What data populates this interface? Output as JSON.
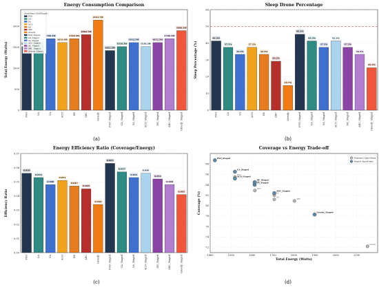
{
  "figure_labels": [
    "(a)",
    "(b)",
    "(c)",
    "(d)"
  ],
  "chart_data": [
    {
      "type": "bar",
      "title": "Energy Consumption Comparison",
      "xlabel": "",
      "ylabel": "Total Energy (Watts)",
      "ylim": [
        0,
        2400
      ],
      "yticks": [
        0,
        500,
        1000,
        1500,
        2000
      ],
      "grid": true,
      "legend": {
        "placement": "top-left",
        "title": "Algorithms (Std/Staged)",
        "entries": [
          "PSO",
          "GA",
          "SA",
          "ACO",
          "DE",
          "ABC",
          "Greedy",
          "PSO_Staged",
          "GA_Staged",
          "SA_Staged",
          "ACO_Staged",
          "DE_Staged",
          "ABC_Staged",
          "Greedy_Staged"
        ]
      },
      "categories": [
        "PSO",
        "GA",
        "SA",
        "ACO",
        "DE",
        "ABC",
        "Greedy",
        "PSO_Staged",
        "GA_Staged",
        "SA_Staged",
        "ACO_Staged",
        "DE_Staged",
        "ABC_Staged",
        "Greedy_Staged"
      ],
      "values": [
        1518.3,
        1612.5,
        1706.3,
        1613.6,
        1706.3,
        1802.7,
        2151.7,
        1422.5,
        1518.3,
        1612.5,
        1518.3,
        1612.5,
        1706.3,
        1898.9
      ],
      "data_labels": [
        "1518.3W",
        "1612.5W",
        "1706.3W",
        "1613.6W",
        "1706.3W",
        "1802.7W",
        "2151.7W",
        "1422.5W",
        "1518.3W",
        "1612.5W",
        "1518.3W",
        "1612.5W",
        "1706.3W",
        "1898.9W"
      ],
      "colors": [
        "#22364f",
        "#2e8a83",
        "#3f6fcf",
        "#f0a21c",
        "#e57c1f",
        "#b5302a",
        "#f07c13",
        "#22364f",
        "#2e8a83",
        "#3f6fcf",
        "#aad4ee",
        "#8b44a6",
        "#b27ccf",
        "#f0573a"
      ]
    },
    {
      "type": "bar",
      "title": "Sleep Drone Percentage",
      "xlabel": "",
      "ylabel": "Sleep Percentage (%)",
      "ylim": [
        0,
        60
      ],
      "yticks": [
        0,
        10,
        20,
        30,
        40,
        50,
        60
      ],
      "reference_line": 50,
      "grid": true,
      "categories": [
        "PSO",
        "GA",
        "SA",
        "ACO",
        "DE",
        "ABC",
        "Greedy",
        "PSO_Staged",
        "GA_Staged",
        "SA_Staged",
        "ACO_Staged",
        "DE_Staged",
        "ABC_Staged",
        "Greedy_Staged"
      ],
      "values": [
        41.3,
        37.5,
        33.3,
        37.5,
        33.3,
        29.2,
        14.7,
        45.3,
        41.3,
        37.5,
        41.3,
        37.5,
        33.3,
        25.3
      ],
      "data_labels": [
        "41.3%",
        "37.5%",
        "33.3%",
        "37.5%",
        "33.3%",
        "29.2%",
        "14.7%",
        "45.3%",
        "41.3%",
        "37.5%",
        "41.3%",
        "37.5%",
        "33.3%",
        "25.3%"
      ],
      "colors": [
        "#22364f",
        "#2e8a83",
        "#3f6fcf",
        "#f0a21c",
        "#e57c1f",
        "#b5302a",
        "#f07c13",
        "#22364f",
        "#2e8a83",
        "#3f6fcf",
        "#aad4ee",
        "#8b44a6",
        "#b27ccf",
        "#f0573a"
      ]
    },
    {
      "type": "bar",
      "title": "Energy Efficiency Ratio (Coverage/Energy)",
      "xlabel": "",
      "ylabel": "Efficiency Ratio",
      "ylim": [
        0,
        0.07
      ],
      "yticks": [
        0,
        0.01,
        0.02,
        0.03,
        0.04,
        0.05,
        0.06,
        0.07
      ],
      "ytick_labels": [
        "0.00",
        "0.01",
        "0.02",
        "0.03",
        "0.04",
        "0.05",
        "0.06",
        "0.07"
      ],
      "grid": true,
      "categories": [
        "PSO",
        "GA",
        "SA",
        "ACO",
        "DE",
        "ABC",
        "Greedy",
        "PSO_Staged",
        "GA_Staged",
        "SA_Staged",
        "ACO_Staged",
        "DE_Staged",
        "ABC_Staged",
        "Greedy_Staged"
      ],
      "values": [
        0.056,
        0.053,
        0.048,
        0.051,
        0.047,
        0.045,
        0.034,
        0.063,
        0.057,
        0.053,
        0.056,
        0.052,
        0.048,
        0.041
      ],
      "data_labels": [
        "0.056",
        "0.053",
        "0.048",
        "0.051",
        "0.047",
        "0.045",
        "0.034",
        "0.063",
        "0.057",
        "0.053",
        "0.056",
        "0.052",
        "0.048",
        "0.041"
      ],
      "colors": [
        "#22364f",
        "#2e8a83",
        "#3f6fcf",
        "#f0a21c",
        "#e57c1f",
        "#b5302a",
        "#f07c13",
        "#22364f",
        "#2e8a83",
        "#3f6fcf",
        "#aad4ee",
        "#8b44a6",
        "#b27ccf",
        "#f0573a"
      ]
    },
    {
      "type": "scatter",
      "title": "Coverage vs Energy Trade-off",
      "xlabel": "Total Energy (Watts)",
      "ylabel": "Coverage (%)",
      "xlim": [
        1400,
        2200
      ],
      "ylim": [
        71,
        90
      ],
      "xticks": [
        1400,
        1500,
        1600,
        1700,
        1800,
        1900,
        2000,
        2100
      ],
      "yticks": [
        72,
        74,
        76,
        78,
        80,
        82,
        84,
        86,
        88
      ],
      "grid": true,
      "legend": {
        "placement": "top-right",
        "entries": [
          "Standard Algorithms",
          "Staged Algorithms"
        ]
      },
      "series": [
        {
          "name": "Standard Algorithms",
          "color": "#b3b3b3",
          "points": [
            {
              "label": "PSO",
              "x": 1518.3,
              "y": 85.5
            },
            {
              "label": "GA",
              "x": 1612.5,
              "y": 84.2
            },
            {
              "label": "SA",
              "x": 1706.3,
              "y": 82.0
            },
            {
              "label": "ACO",
              "x": 1613.6,
              "y": 82.9
            },
            {
              "label": "DE",
              "x": 1706.3,
              "y": 81.2
            },
            {
              "label": "ABC",
              "x": 1802.7,
              "y": 80.9
            },
            {
              "label": "Greedy",
              "x": 2151.7,
              "y": 72.2
            }
          ]
        },
        {
          "name": "Staged Algorithms",
          "color": "#5f87a6",
          "points": [
            {
              "label": "PSO_Staged",
              "x": 1422.5,
              "y": 88.7
            },
            {
              "label": "GA_Staged",
              "x": 1518.3,
              "y": 86.5
            },
            {
              "label": "SA_Staged",
              "x": 1612.5,
              "y": 84.0
            },
            {
              "label": "ACO_Staged",
              "x": 1518.3,
              "y": 85.2
            },
            {
              "label": "DE_Staged",
              "x": 1612.5,
              "y": 84.5
            },
            {
              "label": "ABC_Staged",
              "x": 1706.3,
              "y": 82.4
            },
            {
              "label": "Greedy_Staged",
              "x": 1898.9,
              "y": 78.3
            }
          ]
        }
      ]
    }
  ]
}
